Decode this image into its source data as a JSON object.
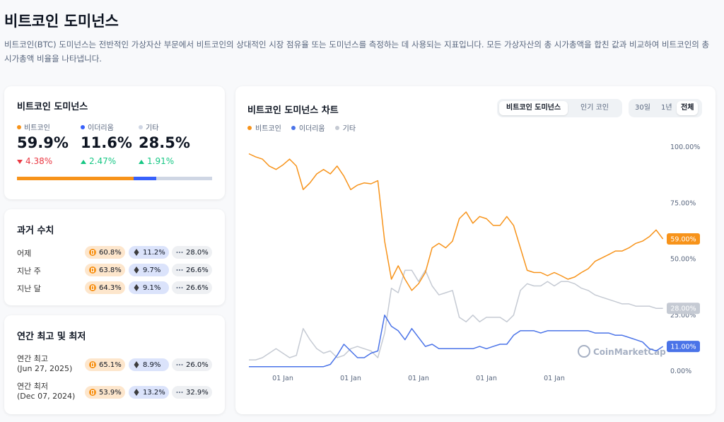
{
  "header": {
    "title": "비트코인 도미넌스",
    "description": "비트코인(BTC) 도미넌스는 전반적인 가상자산 부문에서 비트코인의 상대적인 시장 점유율 또는 도미넌스를 측정하는 데 사용되는 지표입니다. 모든 가상자산의 총 시가총액을 합친 값과 비교하여 비트코인의 총 시가총액 비율을 나타냅니다."
  },
  "dominance_card": {
    "title": "비트코인 도미넌스",
    "items": [
      {
        "name": "비트코인",
        "value": 59.9,
        "label": "59.9%",
        "change": "4.38%",
        "direction": "down",
        "color": "#f7931a"
      },
      {
        "name": "이더리움",
        "value": 11.6,
        "label": "11.6%",
        "change": "2.47%",
        "direction": "up",
        "color": "#3861fb"
      },
      {
        "name": "기타",
        "value": 28.5,
        "label": "28.5%",
        "change": "1.91%",
        "direction": "up",
        "color": "#cfd6e4"
      }
    ]
  },
  "history_card": {
    "title": "과거 수치",
    "rows": [
      {
        "label": "어제",
        "btc": "60.8%",
        "eth": "11.2%",
        "other": "28.0%"
      },
      {
        "label": "지난 주",
        "btc": "63.8%",
        "eth": "9.7%",
        "other": "26.6%"
      },
      {
        "label": "지난 달",
        "btc": "64.3%",
        "eth": "9.1%",
        "other": "26.6%"
      }
    ]
  },
  "yearly_card": {
    "title": "연간 최고 및 최저",
    "rows": [
      {
        "label": "연간 최고",
        "date": "(Jun 27, 2025)",
        "btc": "65.1%",
        "eth": "8.9%",
        "other": "26.0%"
      },
      {
        "label": "연간 최저",
        "date": "(Dec 07, 2024)",
        "btc": "53.9%",
        "eth": "13.2%",
        "other": "32.9%"
      }
    ]
  },
  "chart_panel": {
    "tabs": [
      "비트코인 도미넌스",
      "인기 코인"
    ],
    "active_tab": 0,
    "ranges": [
      "30일",
      "1년",
      "전체"
    ],
    "active_range": 2,
    "watermark": "CoinMarketCap"
  },
  "chart_data": {
    "type": "line",
    "title": "비트코인 도미넌스 차트",
    "categories": [
      null,
      null,
      null,
      null,
      null,
      "01 Jan",
      null,
      null,
      null,
      null,
      null,
      null,
      null,
      null,
      null,
      "01 Jan",
      null,
      null,
      null,
      null,
      null,
      null,
      null,
      null,
      null,
      "01 Jan",
      null,
      null,
      null,
      null,
      null,
      null,
      null,
      null,
      null,
      "01 Jan",
      null,
      null,
      null,
      null,
      null,
      null,
      null,
      null,
      null,
      "01 Jan",
      null,
      null,
      null,
      null,
      null,
      null,
      null,
      null,
      null,
      null,
      null,
      null,
      null,
      null,
      null,
      null
    ],
    "series": [
      {
        "name": "비트코인",
        "color": "#f7931a",
        "end_label": "59.00%",
        "values": [
          97,
          95.6,
          94.6,
          91.5,
          90,
          92,
          94.6,
          91.5,
          81,
          84,
          88,
          90,
          88,
          91.5,
          87,
          81,
          83,
          84,
          83.6,
          85,
          58,
          41,
          47,
          41,
          36,
          39,
          44,
          55,
          57,
          55,
          58,
          68,
          71,
          66,
          69,
          68,
          65,
          65,
          69,
          65,
          55,
          45,
          44,
          44,
          42.6,
          44,
          42.6,
          41,
          42,
          44,
          45.7,
          49,
          50.5,
          52,
          53.6,
          53.6,
          55,
          57,
          58,
          60,
          63,
          59
        ]
      },
      {
        "name": "이더리움",
        "color": "#4a73e8",
        "end_label": "11.00%",
        "values": [
          2,
          2,
          2,
          2,
          2,
          2,
          2,
          2,
          2,
          2,
          2,
          2,
          3,
          7,
          12,
          9,
          6,
          6,
          8,
          9,
          25,
          20,
          18,
          14,
          19,
          15,
          11,
          12,
          10,
          10,
          10,
          10,
          10,
          10,
          11,
          10,
          11,
          12,
          12,
          16,
          18,
          18,
          18,
          17,
          18,
          18,
          18,
          18,
          18,
          18,
          18,
          17,
          17,
          17,
          16,
          16,
          15,
          14,
          13,
          10,
          9,
          11
        ]
      },
      {
        "name": "기타",
        "color": "#c5cad3",
        "end_label": "28.00%",
        "values": [
          5,
          5,
          6,
          8,
          10,
          8,
          6,
          7,
          19,
          14,
          10,
          8,
          9,
          6,
          7,
          10,
          11,
          10,
          9,
          6,
          17,
          37,
          35,
          45,
          45,
          40,
          45,
          38,
          34,
          35,
          36,
          24,
          22,
          25,
          22,
          24,
          24,
          24,
          22,
          25,
          36,
          39,
          38,
          38,
          40,
          38,
          40,
          40,
          39,
          37,
          36,
          34,
          33,
          32,
          31,
          30,
          30,
          29,
          29,
          29,
          28,
          28
        ]
      }
    ],
    "ylim": [
      0,
      100
    ],
    "yticks": [
      {
        "value": 0,
        "label": "0.00%"
      },
      {
        "value": 25,
        "label": "25.00%"
      },
      {
        "value": 50,
        "label": "50.00%"
      },
      {
        "value": 75,
        "label": "75.00%"
      },
      {
        "value": 100,
        "label": "100.00%"
      }
    ],
    "grid": false
  }
}
